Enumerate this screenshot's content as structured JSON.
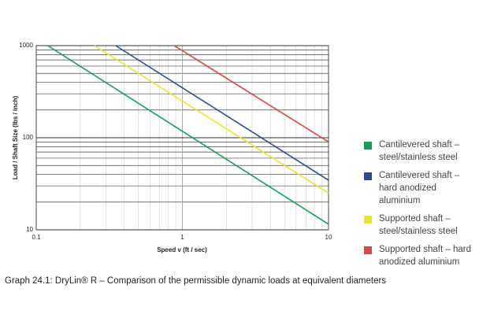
{
  "chart_data": {
    "type": "line",
    "x_label": "Speed v (ft / sec)",
    "y_label": "Load / Shaft Size (lbs / inch)",
    "caption": "Graph 24.1: DryLin® R – Comparison of the permissible dynamic loads at equivalent diameters",
    "log_x": true,
    "log_y": true,
    "grid": true,
    "xlim": [
      0.1,
      10
    ],
    "ylim": [
      10,
      1000
    ],
    "xticks": [
      0.1,
      1,
      10
    ],
    "yticks": [
      10,
      100,
      1000
    ],
    "series": [
      {
        "name": "Cantilevered shaft – steel/stainless steel",
        "color": "#1a9a5a",
        "x": [
          0.12,
          10
        ],
        "values": [
          1000,
          11.5
        ]
      },
      {
        "name": "Cantilevered shaft – hard anodized aluminium",
        "color": "#2f4a8f",
        "x": [
          0.35,
          10
        ],
        "values": [
          1000,
          34.6
        ]
      },
      {
        "name": "Supported shaft – steel/stainless steel",
        "color": "#e8e43a",
        "x": [
          0.25,
          10
        ],
        "values": [
          1000,
          25
        ]
      },
      {
        "name": "Supported shaft – hard anodized aluminium",
        "color": "#d04a4a",
        "x": [
          0.88,
          10
        ],
        "values": [
          1000,
          90
        ]
      }
    ]
  }
}
